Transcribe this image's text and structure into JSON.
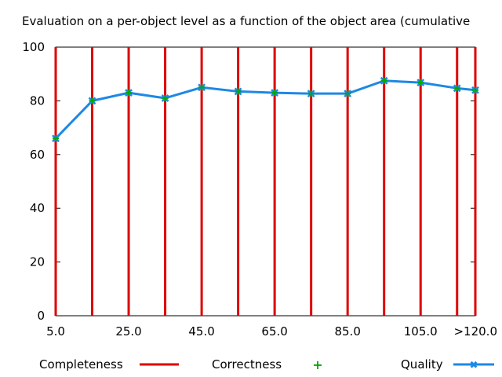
{
  "chart_data": {
    "type": "bar",
    "title": "Evaluation on a per-object level as a function of the object area (cumulative",
    "xlabel": "",
    "ylabel": "",
    "x": [
      5,
      15,
      25,
      35,
      45,
      55,
      65,
      75,
      85,
      95,
      105,
      115,
      120
    ],
    "x_tick_labels": [
      {
        "x": 5,
        "label": "5.0"
      },
      {
        "x": 25,
        "label": "25.0"
      },
      {
        "x": 45,
        "label": "45.0"
      },
      {
        "x": 65,
        "label": "65.0"
      },
      {
        "x": 85,
        "label": "85.0"
      },
      {
        "x": 105,
        "label": "105.0"
      },
      {
        "x": 120,
        "label": ">120.0"
      }
    ],
    "xlim": [
      5,
      120
    ],
    "ylim": [
      0,
      100
    ],
    "y_ticks": [
      0,
      20,
      40,
      60,
      80,
      100
    ],
    "grid": false,
    "legend_position": "bottom",
    "series": [
      {
        "name": "Completeness",
        "style": "impulses",
        "color": "#dd0000",
        "values": [
          100,
          100,
          100,
          100,
          100,
          100,
          100,
          100,
          100,
          100,
          100,
          100,
          100
        ]
      },
      {
        "name": "Correctness",
        "style": "points",
        "color": "#00aa00",
        "values": [
          66,
          80,
          83,
          81,
          85,
          83.5,
          83,
          82.7,
          82.7,
          87.5,
          86.8,
          84.7,
          84
        ]
      },
      {
        "name": "Quality",
        "style": "linespoints",
        "color": "#1e88e5",
        "values": [
          66,
          80,
          83,
          81,
          85,
          83.5,
          83,
          82.7,
          82.7,
          87.5,
          86.8,
          84.7,
          84
        ]
      }
    ]
  }
}
